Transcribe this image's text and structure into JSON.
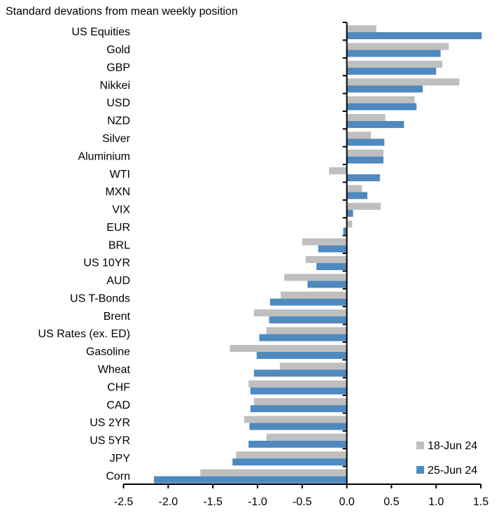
{
  "chart_data": {
    "type": "bar",
    "orientation": "horizontal",
    "title": "Standard devations from mean weekly position",
    "xlabel": "",
    "ylabel": "",
    "xlim": [
      -2.5,
      1.5
    ],
    "xticks": [
      "-2.5",
      "-2.0",
      "-1.5",
      "-1.0",
      "-0.5",
      "0.0",
      "0.5",
      "1.0",
      "1.5"
    ],
    "grid": false,
    "legend_position": "bottom-right",
    "categories": [
      "US Equities",
      "Gold",
      "GBP",
      "Nikkei",
      "USD",
      "NZD",
      "Silver",
      "Aluminium",
      "WTI",
      "MXN",
      "VIX",
      "EUR",
      "BRL",
      "US 10YR",
      "AUD",
      "US T-Bonds",
      "Brent",
      "US Rates (ex. ED)",
      "Gasoline",
      "Wheat",
      "CHF",
      "CAD",
      "US 2YR",
      "US 5YR",
      "JPY",
      "Corn"
    ],
    "series": [
      {
        "name": "18-Jun 24",
        "color": "#BFBFBF",
        "values": [
          0.33,
          1.14,
          1.07,
          1.26,
          0.76,
          0.43,
          0.27,
          0.41,
          -0.2,
          0.17,
          0.38,
          0.06,
          -0.5,
          -0.46,
          -0.7,
          -0.74,
          -1.04,
          -0.9,
          -1.31,
          -0.75,
          -1.1,
          -1.04,
          -1.15,
          -0.9,
          -1.24,
          -1.64
        ]
      },
      {
        "name": "25-Jun 24",
        "color": "#4F89BE",
        "values": [
          1.51,
          1.05,
          1.0,
          0.85,
          0.78,
          0.64,
          0.42,
          0.41,
          0.37,
          0.23,
          0.07,
          -0.04,
          -0.32,
          -0.34,
          -0.44,
          -0.86,
          -0.87,
          -0.98,
          -1.01,
          -1.04,
          -1.08,
          -1.08,
          -1.09,
          -1.1,
          -1.28,
          -2.16
        ]
      }
    ]
  }
}
